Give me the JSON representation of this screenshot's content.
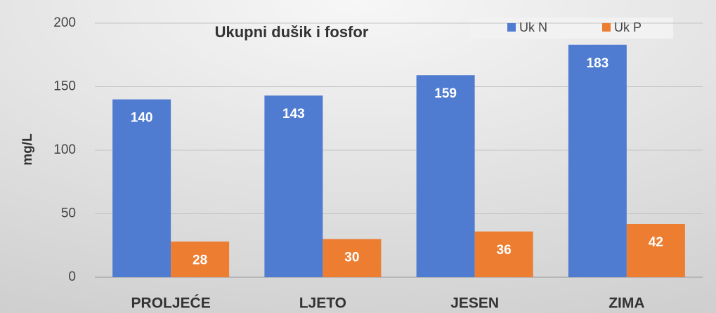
{
  "chart_data": {
    "type": "bar",
    "title": "Ukupni dušik i fosfor",
    "y_label": "mg/L",
    "categories": [
      "PROLJEĆE",
      "LJETO",
      "JESEN",
      "ZIMA"
    ],
    "series": [
      {
        "name": "Uk N",
        "color": "#4f7cd0",
        "values": [
          140,
          143,
          159,
          183
        ]
      },
      {
        "name": "Uk P",
        "color": "#ed7d31",
        "values": [
          28,
          30,
          36,
          42
        ]
      }
    ],
    "ylim": [
      0,
      200
    ],
    "yticks": [
      0,
      50,
      100,
      150,
      200
    ],
    "grid": true,
    "legend": "top-right"
  }
}
